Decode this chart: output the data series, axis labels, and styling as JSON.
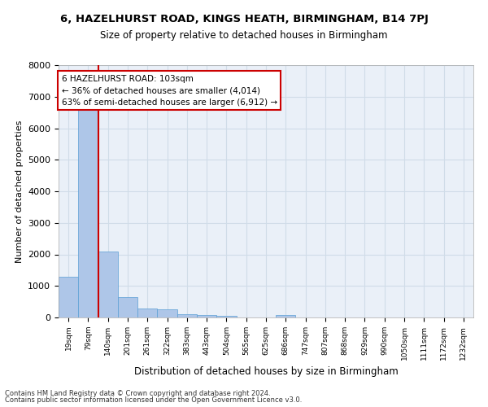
{
  "title_line1": "6, HAZELHURST ROAD, KINGS HEATH, BIRMINGHAM, B14 7PJ",
  "title_line2": "Size of property relative to detached houses in Birmingham",
  "xlabel": "Distribution of detached houses by size in Birmingham",
  "ylabel": "Number of detached properties",
  "property_label": "6 HAZELHURST ROAD: 103sqm",
  "smaller_pct": 36,
  "smaller_count": 4014,
  "larger_pct": 63,
  "larger_count": 6912,
  "bin_labels": [
    "19sqm",
    "79sqm",
    "140sqm",
    "201sqm",
    "261sqm",
    "322sqm",
    "383sqm",
    "443sqm",
    "504sqm",
    "565sqm",
    "625sqm",
    "686sqm",
    "747sqm",
    "807sqm",
    "868sqm",
    "929sqm",
    "990sqm",
    "1050sqm",
    "1111sqm",
    "1172sqm",
    "1232sqm"
  ],
  "bar_values": [
    1300,
    6600,
    2100,
    650,
    290,
    270,
    110,
    80,
    60,
    0,
    0,
    70,
    0,
    0,
    0,
    0,
    0,
    0,
    0,
    0,
    0
  ],
  "bar_color": "#aec6e8",
  "bar_edge_color": "#5a9fd4",
  "vline_color": "#cc0000",
  "vline_x": 1.5,
  "ylim": [
    0,
    8000
  ],
  "yticks": [
    0,
    1000,
    2000,
    3000,
    4000,
    5000,
    6000,
    7000,
    8000
  ],
  "grid_color": "#d0dce8",
  "background_color": "#eaf0f8",
  "annotation_box_color": "#ffffff",
  "annotation_box_edge_color": "#cc0000",
  "footnote1": "Contains HM Land Registry data © Crown copyright and database right 2024.",
  "footnote2": "Contains public sector information licensed under the Open Government Licence v3.0."
}
